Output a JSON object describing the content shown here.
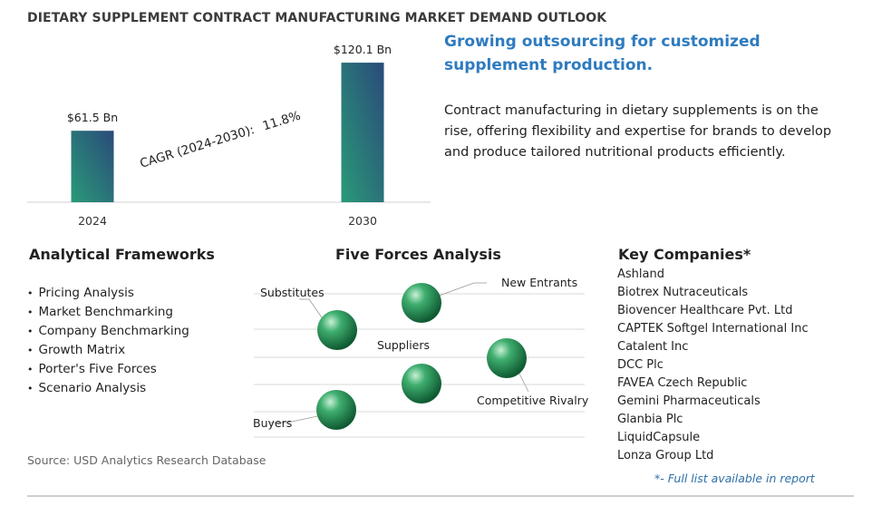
{
  "title": "DIETARY SUPPLEMENT CONTRACT MANUFACTURING MARKET DEMAND OUTLOOK",
  "chart_data": {
    "type": "bar",
    "categories": [
      "2024",
      "2030"
    ],
    "values": [
      61.5,
      120.1
    ],
    "value_labels": [
      "$61.5 Bn",
      "$120.1 Bn"
    ],
    "ylim": [
      0,
      135
    ],
    "grid": false,
    "colors": [
      "#2a9a78",
      "#2a4a7a"
    ],
    "annotation": {
      "label": "CAGR (2024-2030):",
      "value": "11.8%"
    }
  },
  "headline": "Growing outsourcing for customized supplement production.",
  "description": "Contract manufacturing in dietary supplements is on the rise, offering flexibility and expertise for brands to develop and produce tailored nutritional products efficiently.",
  "frameworks": {
    "heading": "Analytical Frameworks",
    "items": [
      "Pricing Analysis",
      "Market Benchmarking",
      "Company Benchmarking",
      "Growth Matrix",
      "Porter's Five Forces",
      "Scenario Analysis"
    ]
  },
  "five_forces": {
    "heading": "Five Forces Analysis",
    "forces": [
      {
        "label": "New Entrants"
      },
      {
        "label": "Substitutes"
      },
      {
        "label": "Suppliers"
      },
      {
        "label": "Competitive Rivalry"
      },
      {
        "label": "Buyers"
      }
    ],
    "ball_color": "#2e8b57"
  },
  "companies": {
    "heading": "Key Companies*",
    "items": [
      "Ashland",
      "Biotrex Nutraceuticals",
      "Biovencer Healthcare Pvt. Ltd",
      "CAPTEK Softgel International Inc",
      "Catalent Inc",
      "DCC Plc",
      "FAVEA Czech Republic",
      "Gemini Pharmaceuticals",
      "Glanbia Plc",
      "LiquidCapsule",
      "Lonza Group Ltd"
    ],
    "footnote": "*- Full list available in report"
  },
  "source": "Source: USD Analytics Research Database"
}
